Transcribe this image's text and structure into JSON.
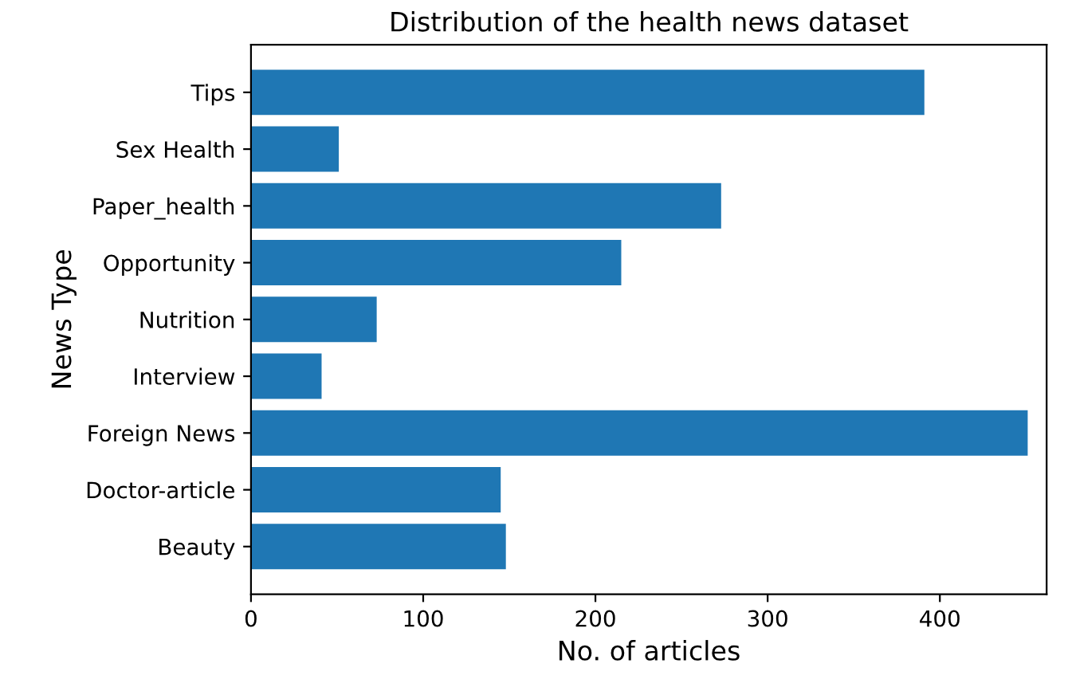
{
  "chart_data": {
    "type": "bar",
    "orientation": "horizontal",
    "title": "Distribution of the health news dataset",
    "xlabel": "No. of articles",
    "ylabel": "News Type",
    "categories": [
      "Tips",
      "Sex Health",
      "Paper_health",
      "Opportunity",
      "Nutrition",
      "Interview",
      "Foreign News",
      "Doctor-article",
      "Beauty"
    ],
    "values": [
      391,
      51,
      273,
      215,
      73,
      41,
      451,
      145,
      148
    ],
    "color": "#1f77b4",
    "xlim": [
      0,
      462
    ],
    "xticks": [
      0,
      100,
      200,
      300,
      400
    ],
    "grid": false,
    "legend": false
  }
}
